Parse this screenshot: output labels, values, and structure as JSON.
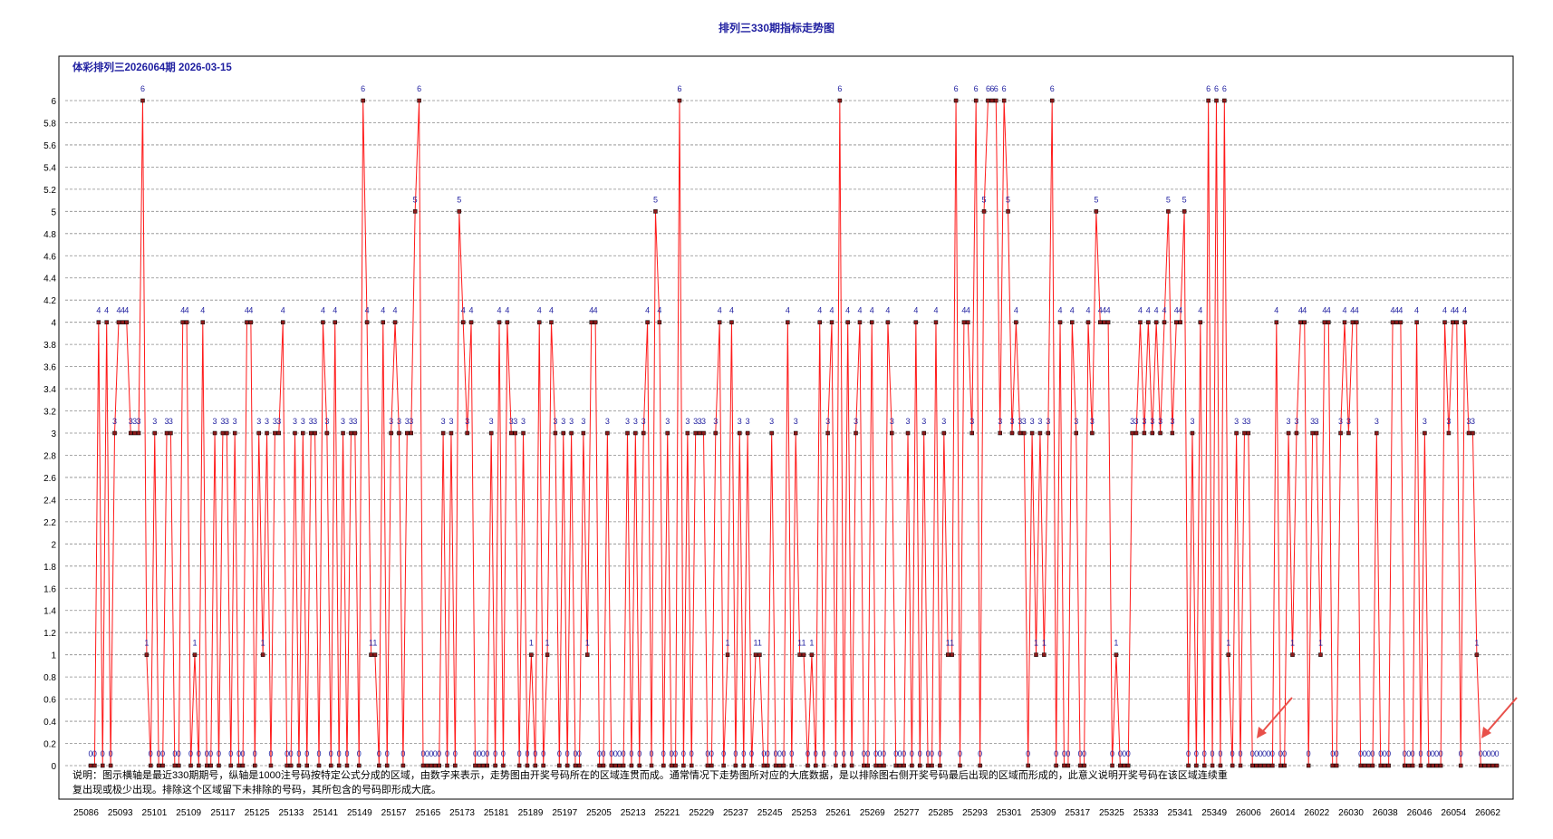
{
  "page_title": "排列三330期指标走势图",
  "subtitle": "体彩排列三2026064期  2026-03-15",
  "note_lines": [
    "说明：图示横轴是最近330期期号，纵轴是1000注号码按特定公式分成的区域，由数字来表示，走势图由开奖号码所在的区域连贯而成。通常情况下走势图所对应的大底数据，是以排除图右侧开奖号码最后出现的区域而形成的，此意义说明开奖号码在该区域连续重",
    "复出现或极少出现。排除这个区域留下未排除的号码，其所包含的号码即形成大底。"
  ],
  "colors": {
    "line": "#ff1a1a",
    "point": "#8b1a1a",
    "label": "#1f1fa0",
    "arrow": "#e8504a"
  },
  "chart_data": {
    "type": "line",
    "title": "排列三330期指标走势图",
    "subtitle": "体彩排列三2026064期  2026-03-15",
    "xlabel": "",
    "ylabel": "",
    "ylim": [
      0,
      6
    ],
    "grid": true,
    "y_ticks": [
      "0",
      "0.2",
      "0.4",
      "0.6",
      "0.8",
      "1",
      "1.2",
      "1.4",
      "1.6",
      "1.8",
      "2",
      "2.2",
      "2.4",
      "2.6",
      "2.8",
      "3",
      "3.2",
      "3.4",
      "3.6",
      "3.8",
      "4",
      "4.2",
      "4.4",
      "4.6",
      "4.8",
      "5",
      "5.2",
      "5.4",
      "5.6",
      "5.8",
      "6"
    ],
    "x_ticks": [
      "25086",
      "25093",
      "25101",
      "25109",
      "25117",
      "25125",
      "25133",
      "25141",
      "25149",
      "25157",
      "25165",
      "25173",
      "25181",
      "25189",
      "25197",
      "25205",
      "25213",
      "25221",
      "25229",
      "25237",
      "25245",
      "25253",
      "25261",
      "25269",
      "25277",
      "25285",
      "25293",
      "25301",
      "25309",
      "25317",
      "25325",
      "25333",
      "25341",
      "25349",
      "26006",
      "26014",
      "26022",
      "26030",
      "26038",
      "26046",
      "26054",
      "26062"
    ],
    "values": [
      0,
      0,
      4,
      0,
      4,
      0,
      3,
      4,
      4,
      4,
      3,
      3,
      3,
      6,
      1,
      0,
      3,
      0,
      0,
      3,
      3,
      0,
      0,
      4,
      4,
      0,
      1,
      0,
      4,
      0,
      0,
      3,
      0,
      3,
      3,
      0,
      3,
      0,
      0,
      4,
      4,
      0,
      3,
      1,
      3,
      0,
      3,
      3,
      4,
      0,
      0,
      3,
      0,
      3,
      0,
      3,
      3,
      0,
      4,
      3,
      0,
      4,
      0,
      3,
      0,
      3,
      3,
      0,
      6,
      4,
      1,
      1,
      0,
      4,
      0,
      3,
      4,
      3,
      0,
      3,
      3,
      5,
      6,
      0,
      0,
      0,
      0,
      0,
      3,
      0,
      3,
      0,
      5,
      4,
      3,
      4,
      0,
      0,
      0,
      0,
      3,
      0,
      4,
      0,
      4,
      3,
      3,
      0,
      3,
      0,
      1,
      0,
      4,
      0,
      1,
      4,
      3,
      0,
      3,
      0,
      3,
      0,
      0,
      3,
      1,
      4,
      4,
      0,
      0,
      3,
      0,
      0,
      0,
      0,
      3,
      0,
      3,
      0,
      3,
      4,
      0,
      5,
      4,
      0,
      3,
      0,
      0,
      6,
      0,
      3,
      0,
      3,
      3,
      3,
      0,
      0,
      3,
      4,
      0,
      1,
      4,
      0,
      3,
      0,
      3,
      0,
      1,
      1,
      0,
      0,
      3,
      0,
      0,
      0,
      4,
      0,
      3,
      1,
      1,
      0,
      1,
      0,
      4,
      0,
      3,
      4,
      0,
      6,
      0,
      4,
      0,
      3,
      4,
      0,
      0,
      4,
      0,
      0,
      0,
      4,
      3,
      0,
      0,
      0,
      3,
      0,
      4,
      0,
      3,
      0,
      0,
      4,
      0,
      3,
      1,
      1,
      6,
      0,
      4,
      4,
      3,
      6,
      0,
      5,
      6,
      6,
      6,
      3,
      6,
      5,
      3,
      4,
      3,
      3,
      0,
      3,
      1,
      3,
      1,
      3,
      6,
      0,
      4,
      0,
      0,
      4,
      3,
      0,
      0,
      4,
      3,
      5,
      4,
      4,
      4,
      0,
      1,
      0,
      0,
      0,
      3,
      3,
      4,
      3,
      4,
      3,
      4,
      3,
      4,
      5,
      3,
      4,
      4,
      5,
      0,
      3,
      0,
      4,
      0,
      6,
      0,
      6,
      0,
      6,
      1,
      0,
      3,
      0,
      3,
      3,
      0,
      0,
      0,
      0,
      0,
      0,
      4,
      0,
      0,
      3,
      1,
      3,
      4,
      4,
      0,
      3,
      3,
      1,
      4,
      4,
      0,
      0,
      3,
      4,
      3,
      4,
      4,
      0,
      0,
      0,
      0,
      3,
      0,
      0,
      0,
      4,
      4,
      4,
      0,
      0,
      0,
      4,
      0,
      3,
      0,
      0,
      0,
      0,
      4,
      3,
      4,
      4,
      0,
      4,
      3,
      3,
      1,
      0,
      0,
      0,
      0,
      0
    ]
  }
}
